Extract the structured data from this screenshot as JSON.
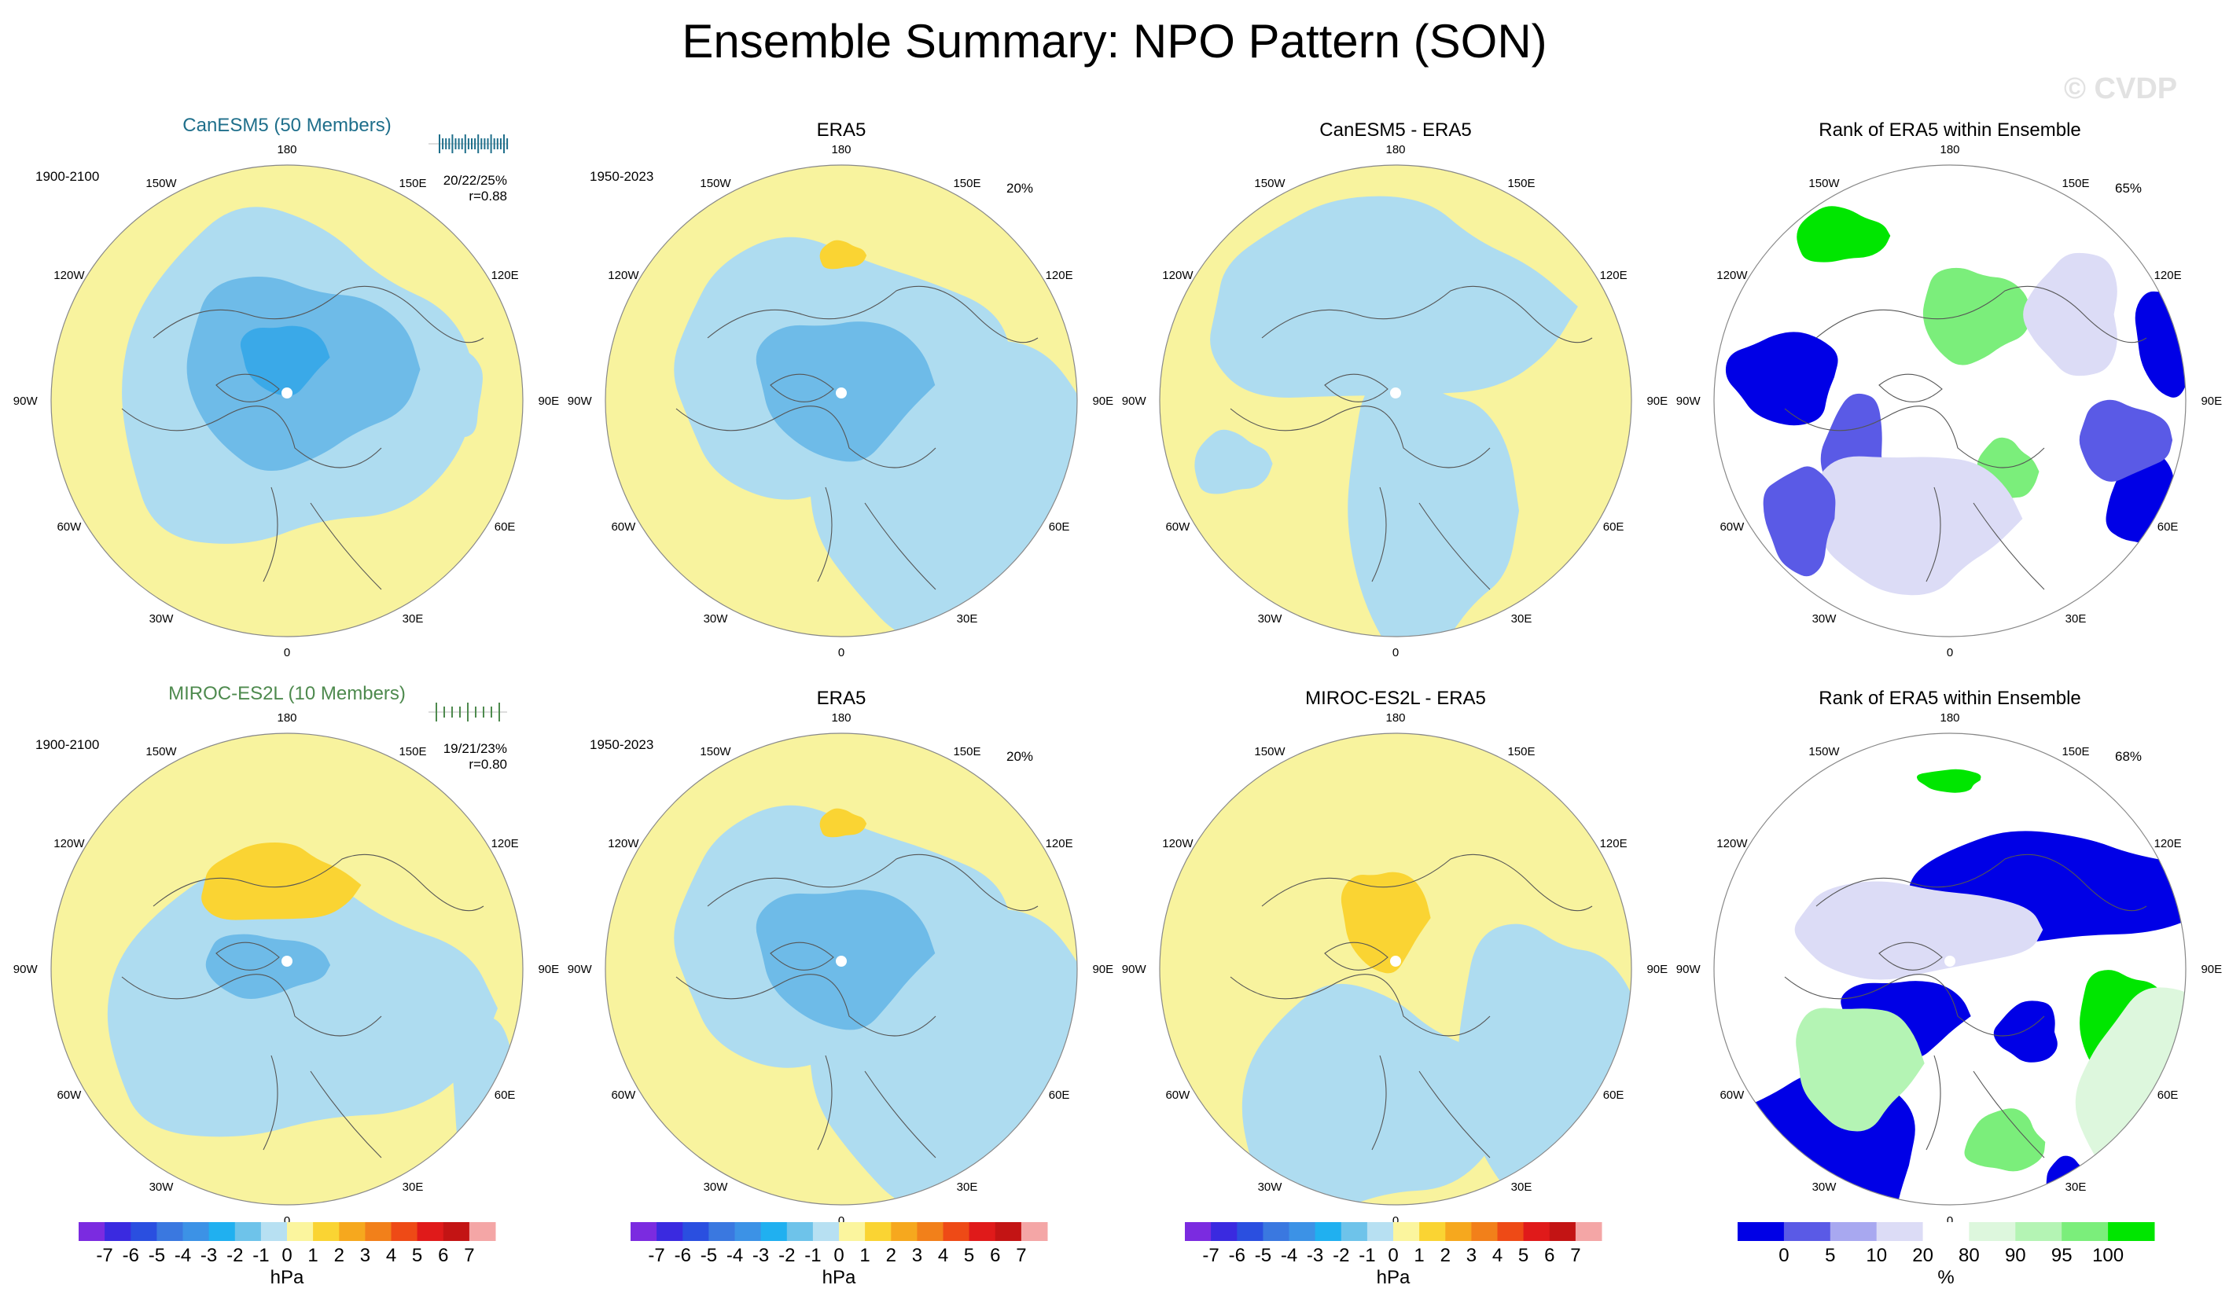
{
  "title": "Ensemble Summary: NPO Pattern (SON)",
  "watermark": "© CVDP",
  "colors": {
    "land_yellow": "#f8f39e",
    "ocean_blue": "#aedcf0",
    "neg2": "#6ebbe8",
    "neg3": "#3aa9e8",
    "pos1": "#fad433",
    "rank_blue": "#0000e6",
    "rank_green": "#00e600"
  },
  "longitude_labels": [
    "180",
    "150E",
    "120E",
    "90E",
    "60E",
    "30E",
    "0",
    "30W",
    "60W",
    "90W",
    "120W",
    "150W"
  ],
  "panels": [
    {
      "title": "CanESM5 (50 Members)",
      "years": "1900-2100",
      "stats1": "20/22/25%",
      "stats2": "r=0.88"
    },
    {
      "title": "ERA5",
      "years": "1950-2023",
      "pct": "20%"
    },
    {
      "title": "CanESM5 - ERA5"
    },
    {
      "title": "Rank of ERA5 within Ensemble",
      "pct": "65%"
    },
    {
      "title": "MIROC-ES2L (10 Members)",
      "years": "1900-2100",
      "stats1": "19/21/23%",
      "stats2": "r=0.80"
    },
    {
      "title": "ERA5",
      "years": "1950-2023",
      "pct": "20%"
    },
    {
      "title": "MIROC-ES2L - ERA5"
    },
    {
      "title": "Rank of ERA5 within Ensemble",
      "pct": "68%"
    }
  ],
  "colorbars": {
    "hpa": {
      "labels": [
        "-7",
        "-6",
        "-5",
        "-4",
        "-3",
        "-2",
        "-1",
        "0",
        "1",
        "2",
        "3",
        "4",
        "5",
        "6",
        "7"
      ],
      "colors": [
        "#7b2be0",
        "#3a2ae0",
        "#2a4fe0",
        "#3a78e0",
        "#3c92e6",
        "#20b0f0",
        "#6ec3ea",
        "#b7e0f2",
        "#fbf59e",
        "#fad433",
        "#f6a81e",
        "#f2801a",
        "#ee4a16",
        "#e01a1a",
        "#c31414",
        "#f4a6a6"
      ],
      "unit": "hPa"
    },
    "rank": {
      "labels": [
        "0",
        "5",
        "10",
        "20",
        "80",
        "90",
        "95",
        "100"
      ],
      "colors": [
        "#0000e6",
        "#5a5ae6",
        "#a8a8f0",
        "#dcdcf6",
        "#ffffff",
        "#ddf7dd",
        "#b4f4b4",
        "#7bee7b",
        "#00e600"
      ],
      "unit": "%"
    }
  },
  "chart_data": [
    {
      "type": "heatmap",
      "title": "CanESM5 (50 Members)",
      "period": "1900-2100",
      "units": "hPa",
      "range": [
        -7,
        7
      ],
      "pattern_stats": "20/22/25%",
      "pattern_corr": 0.88,
      "min_anomaly": -3,
      "max_anomaly": 0
    },
    {
      "type": "heatmap",
      "title": "ERA5",
      "period": "1950-2023",
      "units": "hPa",
      "range": [
        -7,
        7
      ],
      "variance_explained_pct": 20,
      "min_anomaly": -3,
      "max_anomaly": 1
    },
    {
      "type": "heatmap",
      "title": "CanESM5 - ERA5",
      "units": "hPa",
      "range": [
        -7,
        7
      ],
      "min_anomaly": -1,
      "max_anomaly": 0
    },
    {
      "type": "heatmap",
      "title": "Rank of ERA5 within Ensemble",
      "units": "%",
      "levels": [
        0,
        5,
        10,
        20,
        80,
        90,
        95,
        100
      ],
      "pct_value": 65
    },
    {
      "type": "heatmap",
      "title": "MIROC-ES2L (10 Members)",
      "period": "1900-2100",
      "units": "hPa",
      "range": [
        -7,
        7
      ],
      "pattern_stats": "19/21/23%",
      "pattern_corr": 0.8,
      "min_anomaly": -2,
      "max_anomaly": 1
    },
    {
      "type": "heatmap",
      "title": "ERA5",
      "period": "1950-2023",
      "units": "hPa",
      "range": [
        -7,
        7
      ],
      "variance_explained_pct": 20,
      "min_anomaly": -3,
      "max_anomaly": 1
    },
    {
      "type": "heatmap",
      "title": "MIROC-ES2L - ERA5",
      "units": "hPa",
      "range": [
        -7,
        7
      ],
      "min_anomaly": -1,
      "max_anomaly": 1
    },
    {
      "type": "heatmap",
      "title": "Rank of ERA5 within Ensemble",
      "units": "%",
      "levels": [
        0,
        5,
        10,
        20,
        80,
        90,
        95,
        100
      ],
      "pct_value": 68
    }
  ]
}
